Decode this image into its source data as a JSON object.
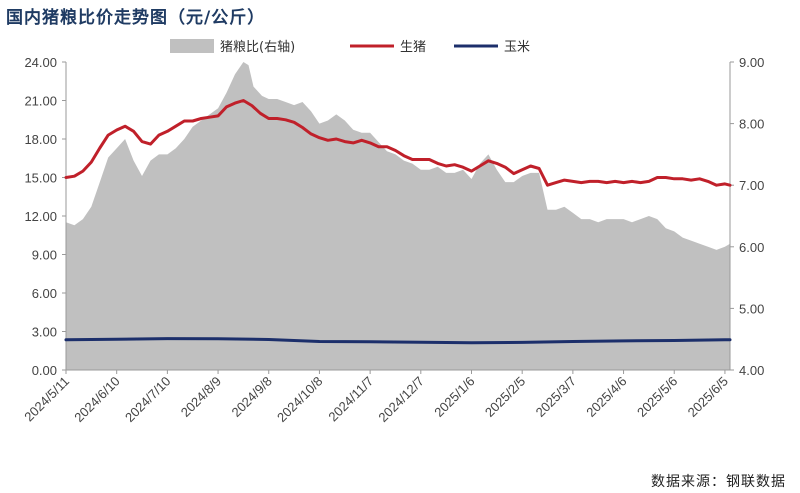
{
  "title": "国内猪粮比价走势图（元/公斤）",
  "source": "数据来源：钢联数据",
  "chart_data": {
    "type": "line",
    "ylim": [
      0,
      24
    ],
    "y2lim": [
      4,
      9
    ],
    "y_ticks": [
      "0.00",
      "3.00",
      "6.00",
      "9.00",
      "12.00",
      "15.00",
      "18.00",
      "21.00",
      "24.00"
    ],
    "y2_ticks": [
      "4.00",
      "5.00",
      "6.00",
      "7.00",
      "8.00",
      "9.00"
    ],
    "x_ticks": [
      "2024/5/11",
      "2024/6/10",
      "2024/7/10",
      "2024/8/9",
      "2024/9/8",
      "2024/10/8",
      "2024/11/7",
      "2024/12/7",
      "2025/1/6",
      "2025/2/5",
      "2025/3/7",
      "2025/4/6",
      "2025/5/6",
      "2025/6/5"
    ],
    "legend_position": "top-center",
    "grid": false,
    "series": [
      {
        "name": "猪粮比(右轴)",
        "kind": "area",
        "axis": "right",
        "color": "#c0c0c0",
        "points": [
          [
            "2024-05-11",
            6.4
          ],
          [
            "2024-05-16",
            6.35
          ],
          [
            "2024-05-21",
            6.45
          ],
          [
            "2024-05-26",
            6.65
          ],
          [
            "2024-05-31",
            7.05
          ],
          [
            "2024-06-05",
            7.45
          ],
          [
            "2024-06-10",
            7.6
          ],
          [
            "2024-06-15",
            7.75
          ],
          [
            "2024-06-20",
            7.4
          ],
          [
            "2024-06-25",
            7.15
          ],
          [
            "2024-06-30",
            7.4
          ],
          [
            "2024-07-05",
            7.5
          ],
          [
            "2024-07-10",
            7.5
          ],
          [
            "2024-07-15",
            7.6
          ],
          [
            "2024-07-20",
            7.75
          ],
          [
            "2024-07-25",
            7.95
          ],
          [
            "2024-07-30",
            8.05
          ],
          [
            "2024-08-04",
            8.15
          ],
          [
            "2024-08-09",
            8.25
          ],
          [
            "2024-08-14",
            8.5
          ],
          [
            "2024-08-19",
            8.8
          ],
          [
            "2024-08-24",
            9.0
          ],
          [
            "2024-08-27",
            8.95
          ],
          [
            "2024-08-30",
            8.6
          ],
          [
            "2024-09-04",
            8.45
          ],
          [
            "2024-09-08",
            8.4
          ],
          [
            "2024-09-13",
            8.4
          ],
          [
            "2024-09-18",
            8.35
          ],
          [
            "2024-09-23",
            8.3
          ],
          [
            "2024-09-28",
            8.35
          ],
          [
            "2024-10-03",
            8.2
          ],
          [
            "2024-10-08",
            8.0
          ],
          [
            "2024-10-13",
            8.05
          ],
          [
            "2024-10-18",
            8.15
          ],
          [
            "2024-10-23",
            8.05
          ],
          [
            "2024-10-28",
            7.9
          ],
          [
            "2024-11-02",
            7.85
          ],
          [
            "2024-11-07",
            7.85
          ],
          [
            "2024-11-12",
            7.7
          ],
          [
            "2024-11-17",
            7.55
          ],
          [
            "2024-11-22",
            7.5
          ],
          [
            "2024-11-27",
            7.4
          ],
          [
            "2024-12-02",
            7.35
          ],
          [
            "2024-12-07",
            7.25
          ],
          [
            "2024-12-12",
            7.25
          ],
          [
            "2024-12-17",
            7.3
          ],
          [
            "2024-12-22",
            7.2
          ],
          [
            "2024-12-27",
            7.2
          ],
          [
            "2025-01-01",
            7.25
          ],
          [
            "2025-01-06",
            7.1
          ],
          [
            "2025-01-11",
            7.35
          ],
          [
            "2025-01-16",
            7.5
          ],
          [
            "2025-01-21",
            7.25
          ],
          [
            "2025-01-26",
            7.05
          ],
          [
            "2025-01-31",
            7.05
          ],
          [
            "2025-02-05",
            7.15
          ],
          [
            "2025-02-10",
            7.2
          ],
          [
            "2025-02-15",
            7.2
          ],
          [
            "2025-02-20",
            6.6
          ],
          [
            "2025-02-25",
            6.6
          ],
          [
            "2025-03-02",
            6.65
          ],
          [
            "2025-03-07",
            6.55
          ],
          [
            "2025-03-12",
            6.45
          ],
          [
            "2025-03-17",
            6.45
          ],
          [
            "2025-03-22",
            6.4
          ],
          [
            "2025-03-27",
            6.45
          ],
          [
            "2025-04-01",
            6.45
          ],
          [
            "2025-04-06",
            6.45
          ],
          [
            "2025-04-11",
            6.4
          ],
          [
            "2025-04-16",
            6.45
          ],
          [
            "2025-04-21",
            6.5
          ],
          [
            "2025-04-26",
            6.45
          ],
          [
            "2025-05-01",
            6.3
          ],
          [
            "2025-05-06",
            6.25
          ],
          [
            "2025-05-11",
            6.15
          ],
          [
            "2025-05-16",
            6.1
          ],
          [
            "2025-05-21",
            6.05
          ],
          [
            "2025-05-26",
            6.0
          ],
          [
            "2025-05-31",
            5.95
          ],
          [
            "2025-06-05",
            6.0
          ],
          [
            "2025-06-08",
            6.05
          ]
        ]
      },
      {
        "name": "生猪",
        "kind": "line",
        "axis": "left",
        "color": "#c0202a",
        "points": [
          [
            "2024-05-11",
            15.0
          ],
          [
            "2024-05-16",
            15.1
          ],
          [
            "2024-05-21",
            15.5
          ],
          [
            "2024-05-26",
            16.2
          ],
          [
            "2024-05-31",
            17.3
          ],
          [
            "2024-06-05",
            18.3
          ],
          [
            "2024-06-10",
            18.7
          ],
          [
            "2024-06-15",
            19.0
          ],
          [
            "2024-06-20",
            18.6
          ],
          [
            "2024-06-25",
            17.8
          ],
          [
            "2024-06-30",
            17.6
          ],
          [
            "2024-07-05",
            18.3
          ],
          [
            "2024-07-10",
            18.6
          ],
          [
            "2024-07-15",
            19.0
          ],
          [
            "2024-07-20",
            19.4
          ],
          [
            "2024-07-25",
            19.4
          ],
          [
            "2024-07-30",
            19.6
          ],
          [
            "2024-08-04",
            19.7
          ],
          [
            "2024-08-09",
            19.8
          ],
          [
            "2024-08-14",
            20.5
          ],
          [
            "2024-08-19",
            20.8
          ],
          [
            "2024-08-24",
            21.0
          ],
          [
            "2024-08-29",
            20.6
          ],
          [
            "2024-09-03",
            20.0
          ],
          [
            "2024-09-08",
            19.6
          ],
          [
            "2024-09-13",
            19.6
          ],
          [
            "2024-09-18",
            19.5
          ],
          [
            "2024-09-23",
            19.3
          ],
          [
            "2024-09-28",
            18.9
          ],
          [
            "2024-10-03",
            18.4
          ],
          [
            "2024-10-08",
            18.1
          ],
          [
            "2024-10-13",
            17.9
          ],
          [
            "2024-10-18",
            18.0
          ],
          [
            "2024-10-23",
            17.8
          ],
          [
            "2024-10-28",
            17.7
          ],
          [
            "2024-11-02",
            17.9
          ],
          [
            "2024-11-07",
            17.7
          ],
          [
            "2024-11-12",
            17.4
          ],
          [
            "2024-11-17",
            17.4
          ],
          [
            "2024-11-22",
            17.1
          ],
          [
            "2024-11-27",
            16.7
          ],
          [
            "2024-12-02",
            16.4
          ],
          [
            "2024-12-07",
            16.4
          ],
          [
            "2024-12-12",
            16.4
          ],
          [
            "2024-12-17",
            16.1
          ],
          [
            "2024-12-22",
            15.9
          ],
          [
            "2024-12-27",
            16.0
          ],
          [
            "2025-01-01",
            15.8
          ],
          [
            "2025-01-06",
            15.5
          ],
          [
            "2025-01-11",
            15.9
          ],
          [
            "2025-01-16",
            16.3
          ],
          [
            "2025-01-21",
            16.1
          ],
          [
            "2025-01-26",
            15.8
          ],
          [
            "2025-01-31",
            15.3
          ],
          [
            "2025-02-05",
            15.6
          ],
          [
            "2025-02-10",
            15.9
          ],
          [
            "2025-02-15",
            15.7
          ],
          [
            "2025-02-20",
            14.4
          ],
          [
            "2025-02-25",
            14.6
          ],
          [
            "2025-03-02",
            14.8
          ],
          [
            "2025-03-07",
            14.7
          ],
          [
            "2025-03-12",
            14.6
          ],
          [
            "2025-03-17",
            14.7
          ],
          [
            "2025-03-22",
            14.7
          ],
          [
            "2025-03-27",
            14.6
          ],
          [
            "2025-04-01",
            14.7
          ],
          [
            "2025-04-06",
            14.6
          ],
          [
            "2025-04-11",
            14.7
          ],
          [
            "2025-04-16",
            14.6
          ],
          [
            "2025-04-21",
            14.7
          ],
          [
            "2025-04-26",
            15.0
          ],
          [
            "2025-05-01",
            15.0
          ],
          [
            "2025-05-06",
            14.9
          ],
          [
            "2025-05-11",
            14.9
          ],
          [
            "2025-05-16",
            14.8
          ],
          [
            "2025-05-21",
            14.9
          ],
          [
            "2025-05-26",
            14.7
          ],
          [
            "2025-05-31",
            14.4
          ],
          [
            "2025-06-05",
            14.5
          ],
          [
            "2025-06-08",
            14.4
          ]
        ]
      },
      {
        "name": "玉米",
        "kind": "line",
        "axis": "left",
        "color": "#1c2f6b",
        "points": [
          [
            "2024-05-11",
            2.35
          ],
          [
            "2024-06-10",
            2.4
          ],
          [
            "2024-07-10",
            2.45
          ],
          [
            "2024-08-09",
            2.43
          ],
          [
            "2024-09-08",
            2.38
          ],
          [
            "2024-10-08",
            2.22
          ],
          [
            "2024-11-07",
            2.2
          ],
          [
            "2024-12-07",
            2.17
          ],
          [
            "2025-01-06",
            2.12
          ],
          [
            "2025-02-05",
            2.15
          ],
          [
            "2025-03-07",
            2.22
          ],
          [
            "2025-04-06",
            2.27
          ],
          [
            "2025-05-06",
            2.3
          ],
          [
            "2025-06-05",
            2.35
          ],
          [
            "2025-06-08",
            2.36
          ]
        ]
      }
    ]
  }
}
